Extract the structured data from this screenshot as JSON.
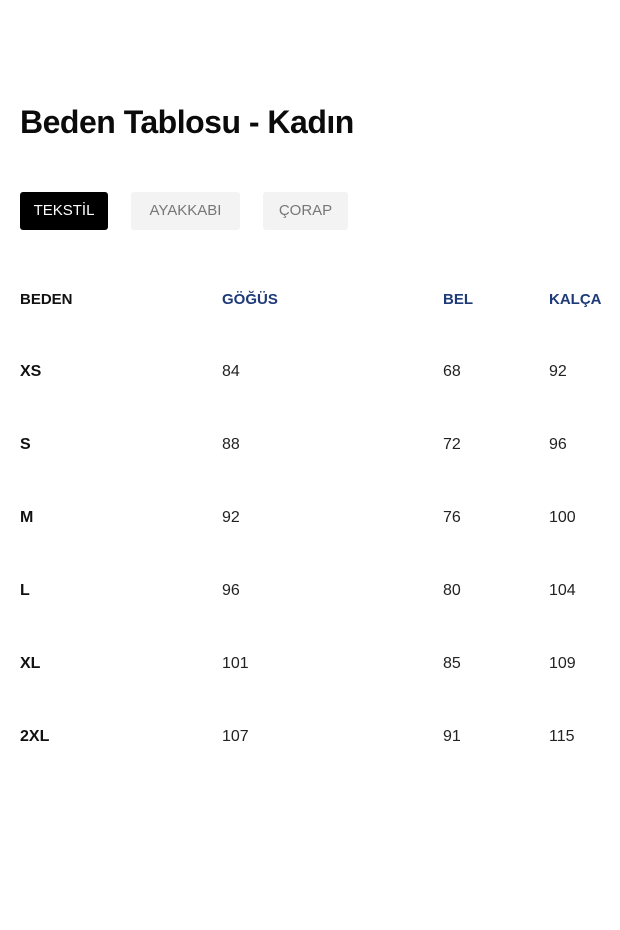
{
  "title": "Beden Tablosu - Kadın",
  "tabs": [
    {
      "label": "TEKSTİL",
      "active": true
    },
    {
      "label": "AYAKKABI",
      "active": false
    },
    {
      "label": "ÇORAP",
      "active": false
    }
  ],
  "colors": {
    "header_accent": "#1e3a78",
    "active_tab": "#000000",
    "inactive_tab": "#f3f3f3"
  },
  "table": {
    "headers": [
      "BEDEN",
      "GÖĞÜS",
      "BEL",
      "KALÇA"
    ],
    "rows": [
      [
        "XS",
        "84",
        "68",
        "92"
      ],
      [
        "S",
        "88",
        "72",
        "96"
      ],
      [
        "M",
        "92",
        "76",
        "100"
      ],
      [
        "L",
        "96",
        "80",
        "104"
      ],
      [
        "XL",
        "101",
        "85",
        "109"
      ],
      [
        "2XL",
        "107",
        "91",
        "115"
      ]
    ]
  }
}
